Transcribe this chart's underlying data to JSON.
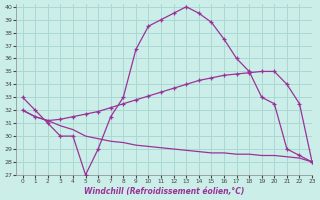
{
  "xlabel": "Windchill (Refroidissement éolien,°C)",
  "xlim": [
    -0.5,
    23
  ],
  "ylim": [
    27,
    40.2
  ],
  "yticks": [
    27,
    28,
    29,
    30,
    31,
    32,
    33,
    34,
    35,
    36,
    37,
    38,
    39,
    40
  ],
  "xticks": [
    0,
    1,
    2,
    3,
    4,
    5,
    6,
    7,
    8,
    9,
    10,
    11,
    12,
    13,
    14,
    15,
    16,
    17,
    18,
    19,
    20,
    21,
    22,
    23
  ],
  "bg_color": "#cceee8",
  "grid_color": "#aad8d4",
  "line_color": "#993399",
  "curve1_x": [
    0,
    1,
    2,
    3,
    4,
    5,
    6,
    7,
    8,
    9,
    10,
    11,
    12,
    13,
    14,
    15,
    16,
    17,
    18,
    19,
    20,
    21,
    22,
    23
  ],
  "curve1_y": [
    33.0,
    32.0,
    31.0,
    30.0,
    30.0,
    27.0,
    29.0,
    31.5,
    33.0,
    36.7,
    38.5,
    39.0,
    39.5,
    40.0,
    39.5,
    38.8,
    37.5,
    36.0,
    35.0,
    33.0,
    32.5,
    29.0,
    28.5,
    28.0
  ],
  "curve2_x": [
    0,
    1,
    2,
    3,
    4,
    5,
    6,
    7,
    8,
    9,
    10,
    11,
    12,
    13,
    14,
    15,
    16,
    17,
    18,
    19,
    20,
    21,
    22,
    23
  ],
  "curve2_y": [
    32.0,
    31.5,
    31.2,
    31.3,
    31.5,
    31.7,
    31.9,
    32.2,
    32.5,
    32.8,
    33.1,
    33.4,
    33.7,
    34.0,
    34.3,
    34.5,
    34.7,
    34.8,
    34.9,
    35.0,
    35.0,
    34.0,
    32.5,
    28.0
  ],
  "curve3_x": [
    0,
    1,
    2,
    3,
    4,
    5,
    6,
    7,
    8,
    9,
    10,
    11,
    12,
    13,
    14,
    15,
    16,
    17,
    18,
    19,
    20,
    21,
    22,
    23
  ],
  "curve3_y": [
    32.0,
    31.5,
    31.2,
    30.8,
    30.5,
    30.0,
    29.8,
    29.6,
    29.5,
    29.3,
    29.2,
    29.1,
    29.0,
    28.9,
    28.8,
    28.7,
    28.7,
    28.6,
    28.6,
    28.5,
    28.5,
    28.4,
    28.3,
    28.0
  ]
}
